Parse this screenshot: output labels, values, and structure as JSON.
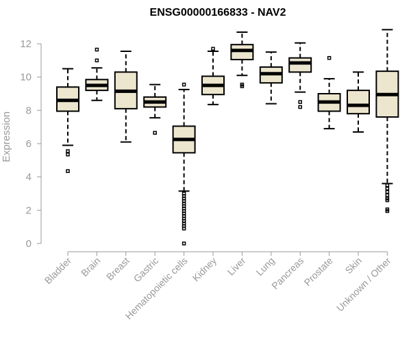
{
  "chart_data": {
    "type": "boxplot",
    "title": "ENSG00000166833 - NAV2",
    "xlabel": "",
    "ylabel": "Expression",
    "ylim": [
      0,
      12
    ],
    "yticks": [
      0,
      2,
      4,
      6,
      8,
      10,
      12
    ],
    "categories": [
      "Bladder",
      "Brain",
      "Breast",
      "Gastric",
      "Hematopoietic cells",
      "Kidney",
      "Liver",
      "Lung",
      "Pancreas",
      "Prostate",
      "Skin",
      "Unknown / Other"
    ],
    "boxes": [
      {
        "category": "Bladder",
        "whisker_low": 5.9,
        "q1": 7.95,
        "median": 8.6,
        "q3": 9.4,
        "whisker_high": 10.5,
        "outliers": [
          5.55,
          5.35,
          4.35
        ]
      },
      {
        "category": "Brain",
        "whisker_low": 8.6,
        "q1": 9.2,
        "median": 9.5,
        "q3": 9.85,
        "whisker_high": 10.55,
        "outliers": [
          11.65,
          11.0
        ]
      },
      {
        "category": "Breast",
        "whisker_low": 6.1,
        "q1": 8.1,
        "median": 9.15,
        "q3": 10.3,
        "whisker_high": 11.55,
        "outliers": []
      },
      {
        "category": "Gastric",
        "whisker_low": 7.55,
        "q1": 8.2,
        "median": 8.5,
        "q3": 8.8,
        "whisker_high": 9.55,
        "outliers": [
          6.65
        ]
      },
      {
        "category": "Hematopoietic cells",
        "whisker_low": 3.15,
        "q1": 5.45,
        "median": 6.25,
        "q3": 7.05,
        "whisker_high": 9.25,
        "outliers": [
          9.55,
          3.0,
          2.85,
          2.7,
          2.55,
          2.4,
          2.25,
          2.1,
          1.95,
          1.8,
          1.65,
          1.5,
          1.35,
          1.2,
          1.05,
          0.9,
          0.0
        ]
      },
      {
        "category": "Kidney",
        "whisker_low": 8.35,
        "q1": 8.95,
        "median": 9.5,
        "q3": 10.05,
        "whisker_high": 11.55,
        "outliers": [
          11.7
        ]
      },
      {
        "category": "Liver",
        "whisker_low": 10.1,
        "q1": 11.05,
        "median": 11.6,
        "q3": 11.95,
        "whisker_high": 12.7,
        "outliers": [
          9.55,
          9.45
        ]
      },
      {
        "category": "Lung",
        "whisker_low": 8.4,
        "q1": 9.65,
        "median": 10.2,
        "q3": 10.6,
        "whisker_high": 11.5,
        "outliers": []
      },
      {
        "category": "Pancreas",
        "whisker_low": 9.1,
        "q1": 10.3,
        "median": 10.85,
        "q3": 11.15,
        "whisker_high": 12.05,
        "outliers": [
          8.5,
          8.2
        ]
      },
      {
        "category": "Prostate",
        "whisker_low": 6.9,
        "q1": 7.95,
        "median": 8.5,
        "q3": 9.0,
        "whisker_high": 9.9,
        "outliers": [
          11.15
        ]
      },
      {
        "category": "Skin",
        "whisker_low": 6.7,
        "q1": 7.8,
        "median": 8.3,
        "q3": 9.2,
        "whisker_high": 10.3,
        "outliers": []
      },
      {
        "category": "Unknown / Other",
        "whisker_low": 3.6,
        "q1": 7.6,
        "median": 8.95,
        "q3": 10.35,
        "whisker_high": 12.85,
        "outliers": [
          3.5,
          3.3,
          3.1,
          2.9,
          2.7,
          2.6,
          2.05,
          1.95
        ]
      }
    ],
    "colors": {
      "box_fill": "#ede6cf",
      "box_stroke": "#000000",
      "axis": "#999999",
      "title": "#000000"
    }
  }
}
